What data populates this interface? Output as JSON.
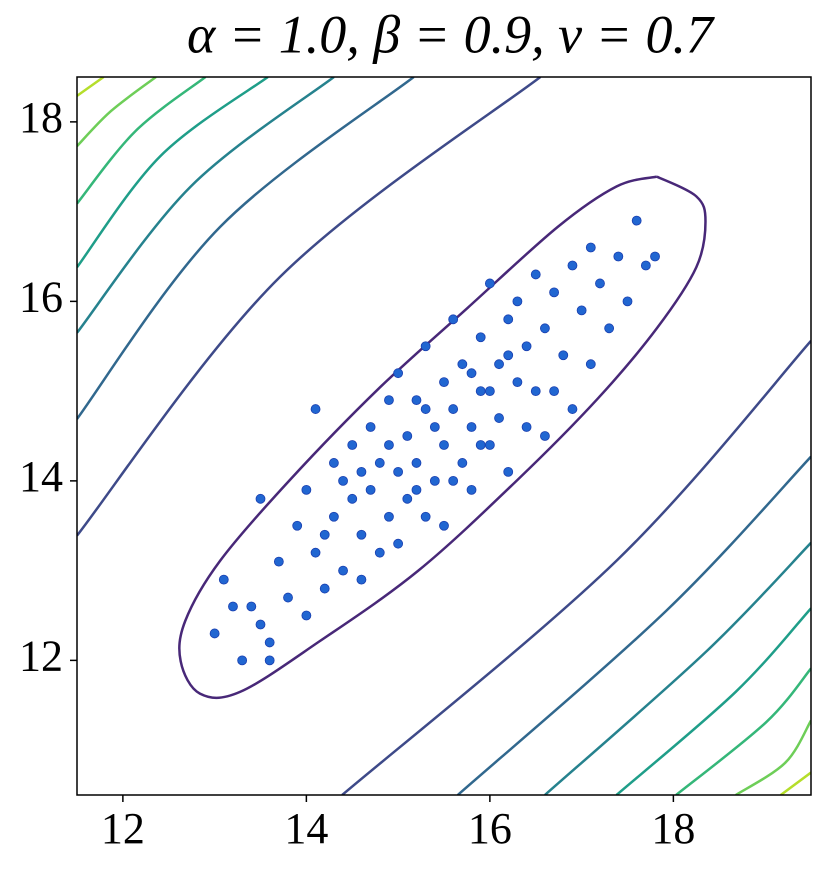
{
  "chart_data": {
    "type": "scatter",
    "title": "α = 1.0, β = 0.9, ν = 0.7",
    "xlim": [
      11.5,
      19.5
    ],
    "ylim": [
      10.5,
      18.5
    ],
    "xticks": [
      12,
      14,
      16,
      18
    ],
    "yticks": [
      12,
      14,
      16,
      18
    ],
    "grid": false,
    "series": [
      {
        "color": "#2166d1",
        "x": [
          13.0,
          13.1,
          13.3,
          13.4,
          13.5,
          13.6,
          13.7,
          13.8,
          13.9,
          14.0,
          14.0,
          14.1,
          14.1,
          14.2,
          14.3,
          14.3,
          14.4,
          14.5,
          14.5,
          14.6,
          14.6,
          14.7,
          14.7,
          14.8,
          14.8,
          14.9,
          14.9,
          15.0,
          15.0,
          15.0,
          15.1,
          15.1,
          15.2,
          15.2,
          15.3,
          15.3,
          15.4,
          15.4,
          15.5,
          15.5,
          15.5,
          15.6,
          15.6,
          15.7,
          15.7,
          15.8,
          15.8,
          15.9,
          15.9,
          16.0,
          16.0,
          16.1,
          16.1,
          16.2,
          16.2,
          16.3,
          16.3,
          16.4,
          16.4,
          16.5,
          16.5,
          16.6,
          16.6,
          16.7,
          16.8,
          16.9,
          16.9,
          17.0,
          17.1,
          17.1,
          17.2,
          17.3,
          17.4,
          17.5,
          17.6,
          17.7,
          17.8,
          13.2,
          13.5,
          14.2,
          14.4,
          15.2,
          15.6,
          16.0,
          16.2,
          16.7,
          14.9,
          15.3,
          15.8,
          13.6,
          14.6,
          15.9
        ],
        "y": [
          12.3,
          12.9,
          12.0,
          12.6,
          13.8,
          12.2,
          13.1,
          12.7,
          13.5,
          12.5,
          13.9,
          14.8,
          13.2,
          12.8,
          13.6,
          14.2,
          13.0,
          13.8,
          14.4,
          12.9,
          13.4,
          14.6,
          13.9,
          13.2,
          14.2,
          14.9,
          13.6,
          14.1,
          13.3,
          15.2,
          14.5,
          13.8,
          14.9,
          14.2,
          13.6,
          15.5,
          14.6,
          14.0,
          15.1,
          14.4,
          13.5,
          15.8,
          14.8,
          14.2,
          15.3,
          14.6,
          13.9,
          15.6,
          15.0,
          14.4,
          16.2,
          15.3,
          14.7,
          15.8,
          14.1,
          15.1,
          16.0,
          14.6,
          15.5,
          16.3,
          15.0,
          15.7,
          14.5,
          16.1,
          15.4,
          16.4,
          14.8,
          15.9,
          16.6,
          15.3,
          16.2,
          15.7,
          16.5,
          16.0,
          16.9,
          16.4,
          16.5,
          12.6,
          12.4,
          13.4,
          14.0,
          13.9,
          14.0,
          15.0,
          15.4,
          15.0,
          14.4,
          14.8,
          15.2,
          12.0,
          14.1,
          14.4
        ]
      }
    ],
    "contours": [
      {
        "color": "#482878",
        "x": [
          17.82,
          18.25,
          18.35,
          18.25,
          17.82,
          17.17,
          16.3,
          15.22,
          14.14,
          13.28,
          12.84,
          12.63,
          12.68,
          13.06,
          13.82,
          14.79,
          15.76,
          16.74,
          17.38,
          17.82
        ],
        "y": [
          17.39,
          17.17,
          16.89,
          16.38,
          15.7,
          14.91,
          14.01,
          13.0,
          12.21,
          11.65,
          11.63,
          11.99,
          12.44,
          13.11,
          14.01,
          15.03,
          15.93,
          16.83,
          17.28,
          17.39
        ]
      },
      {
        "color": "#3e4a89",
        "x": [
          11.5,
          13.71,
          16.55
        ],
        "y": [
          13.39,
          16.27,
          18.5
        ]
      },
      {
        "color": "#31688e",
        "x": [
          11.5,
          13.06,
          15.17
        ],
        "y": [
          14.69,
          16.83,
          18.5
        ]
      },
      {
        "color": "#26828e",
        "x": [
          11.5,
          12.74,
          14.3
        ],
        "y": [
          15.65,
          17.28,
          18.5
        ]
      },
      {
        "color": "#1f9e89",
        "x": [
          11.5,
          12.41,
          13.58
        ],
        "y": [
          16.38,
          17.62,
          18.5
        ]
      },
      {
        "color": "#35b779",
        "x": [
          11.5,
          12.14,
          12.9
        ],
        "y": [
          17.09,
          17.9,
          18.5
        ]
      },
      {
        "color": "#6ece58",
        "x": [
          11.5,
          11.87,
          12.36
        ],
        "y": [
          17.73,
          18.12,
          18.5
        ]
      },
      {
        "color": "#b5de2b",
        "x": [
          11.5,
          11.79
        ],
        "y": [
          18.29,
          18.5
        ]
      },
      {
        "color": "#3e4a89",
        "x": [
          14.39,
          17.38,
          19.5
        ],
        "y": [
          10.5,
          13.11,
          15.56
        ]
      },
      {
        "color": "#31688e",
        "x": [
          15.65,
          17.92,
          19.5
        ],
        "y": [
          10.5,
          12.55,
          14.27
        ]
      },
      {
        "color": "#26828e",
        "x": [
          16.6,
          18.36,
          19.5
        ],
        "y": [
          10.5,
          12.1,
          13.31
        ]
      },
      {
        "color": "#1f9e89",
        "x": [
          17.38,
          18.68,
          19.5
        ],
        "y": [
          10.5,
          11.65,
          12.58
        ]
      },
      {
        "color": "#35b779",
        "x": [
          18.03,
          19.01,
          19.5
        ],
        "y": [
          10.5,
          11.31,
          11.91
        ]
      },
      {
        "color": "#6ece58",
        "x": [
          18.68,
          19.22,
          19.5
        ],
        "y": [
          10.5,
          10.86,
          11.33
        ]
      },
      {
        "color": "#b5de2b",
        "x": [
          19.17,
          19.5
        ],
        "y": [
          10.5,
          10.75
        ]
      }
    ]
  }
}
